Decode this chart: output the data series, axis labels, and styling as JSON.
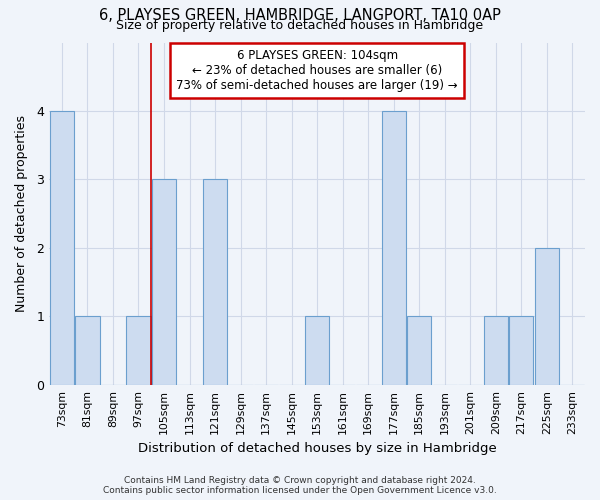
{
  "title": "6, PLAYSES GREEN, HAMBRIDGE, LANGPORT, TA10 0AP",
  "subtitle": "Size of property relative to detached houses in Hambridge",
  "xlabel": "Distribution of detached houses by size in Hambridge",
  "ylabel": "Number of detached properties",
  "categories": [
    "73sqm",
    "81sqm",
    "89sqm",
    "97sqm",
    "105sqm",
    "113sqm",
    "121sqm",
    "129sqm",
    "137sqm",
    "145sqm",
    "153sqm",
    "161sqm",
    "169sqm",
    "177sqm",
    "185sqm",
    "193sqm",
    "201sqm",
    "209sqm",
    "217sqm",
    "225sqm",
    "233sqm"
  ],
  "values": [
    4,
    1,
    0,
    1,
    3,
    0,
    3,
    0,
    0,
    0,
    1,
    0,
    0,
    4,
    1,
    0,
    0,
    1,
    1,
    2,
    0
  ],
  "bar_color": "#cddcf0",
  "bar_edge_color": "#6b9fce",
  "grid_color": "#d0d8e8",
  "vline_x_index": 3.5,
  "annotation_text_line1": "6 PLAYSES GREEN: 104sqm",
  "annotation_text_line2": "← 23% of detached houses are smaller (6)",
  "annotation_text_line3": "73% of semi-detached houses are larger (19) →",
  "annotation_box_color": "#ffffff",
  "annotation_box_edge_color": "#cc0000",
  "vline_color": "#cc0000",
  "ylim": [
    0,
    5
  ],
  "yticks": [
    0,
    1,
    2,
    3,
    4
  ],
  "background_color": "#f0f4fa",
  "footer_line1": "Contains HM Land Registry data © Crown copyright and database right 2024.",
  "footer_line2": "Contains public sector information licensed under the Open Government Licence v3.0."
}
